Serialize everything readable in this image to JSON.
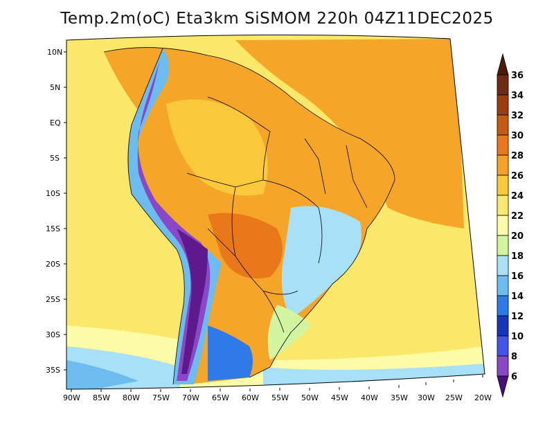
{
  "title": "Temp.2m(oC) Eta3km SiSMOM 220h 04Z11DEC2025",
  "map": {
    "lat_labels": [
      "10N",
      "5N",
      "EQ",
      "5S",
      "10S",
      "15S",
      "20S",
      "25S",
      "30S",
      "35S"
    ],
    "lon_labels": [
      "90W",
      "85W",
      "80W",
      "75W",
      "70W",
      "65W",
      "60W",
      "55W",
      "50W",
      "45W",
      "40W",
      "35W",
      "30W",
      "25W",
      "20W"
    ]
  },
  "colorbar": {
    "levels": [
      "36",
      "34",
      "32",
      "30",
      "28",
      "26",
      "24",
      "22",
      "20",
      "18",
      "16",
      "14",
      "12",
      "10",
      "8",
      "6"
    ],
    "colors": [
      "#6e2a12",
      "#9c3d10",
      "#c65a12",
      "#e8781a",
      "#f5a227",
      "#f9c93b",
      "#fde972",
      "#fcfca8",
      "#d4f5a0",
      "#a8e0f7",
      "#6cbcf0",
      "#2e7ae6",
      "#1636b8",
      "#4454e8",
      "#8a48c8",
      "#5e1a8c"
    ],
    "top_color": "#4a1c08",
    "bottom_color": "#4b0f7a"
  }
}
